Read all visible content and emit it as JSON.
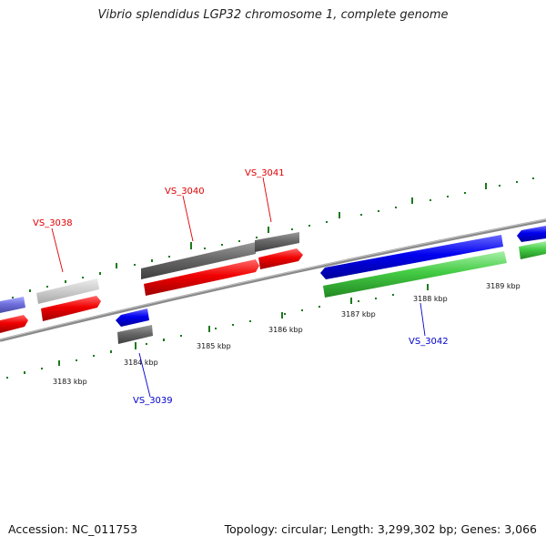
{
  "title": "Vibrio splendidus LGP32 chromosome 1, complete genome",
  "accession": "Accession: NC_011753",
  "topology": "Topology: circular; Length: 3,299,302 bp; Genes: 3,066",
  "colors": {
    "forward_label": "#e00000",
    "reverse_label": "#0000cc",
    "tick": "#1a7a1a",
    "backbone": "#8a8a8a"
  },
  "kbp_labels": [
    "3183 kbp",
    "3184 kbp",
    "3185 kbp",
    "3186 kbp",
    "3187 kbp",
    "3188 kbp",
    "3189 kbp"
  ],
  "genes": [
    {
      "label": "VS_3038",
      "strand": "forward"
    },
    {
      "label": "VS_3039",
      "strand": "reverse"
    },
    {
      "label": "VS_3040",
      "strand": "forward"
    },
    {
      "label": "VS_3041",
      "strand": "forward"
    },
    {
      "label": "VS_3042",
      "strand": "reverse"
    }
  ]
}
